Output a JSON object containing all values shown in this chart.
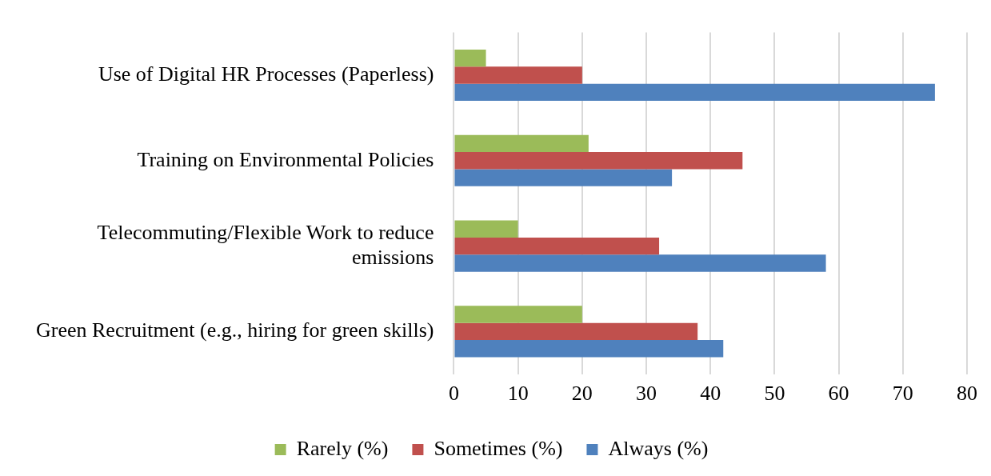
{
  "chart_data": {
    "type": "bar",
    "orientation": "horizontal",
    "categories": [
      "Use of Digital HR Processes (Paperless)",
      "Training on Environmental Policies",
      "Telecommuting/Flexible Work to reduce emissions",
      "Green Recruitment (e.g., hiring for green skills)"
    ],
    "series": [
      {
        "name": "Rarely (%)",
        "color": "#9bbb59",
        "values": [
          5,
          21,
          10,
          20
        ]
      },
      {
        "name": "Sometimes (%)",
        "color": "#c0504d",
        "values": [
          20,
          45,
          32,
          38
        ]
      },
      {
        "name": "Always (%)",
        "color": "#4f81bd",
        "values": [
          75,
          34,
          58,
          42
        ]
      }
    ],
    "xlim": [
      0,
      80
    ],
    "xticks": [
      0,
      10,
      20,
      30,
      40,
      50,
      60,
      70,
      80
    ],
    "grid": "x",
    "legend": "bottom"
  }
}
